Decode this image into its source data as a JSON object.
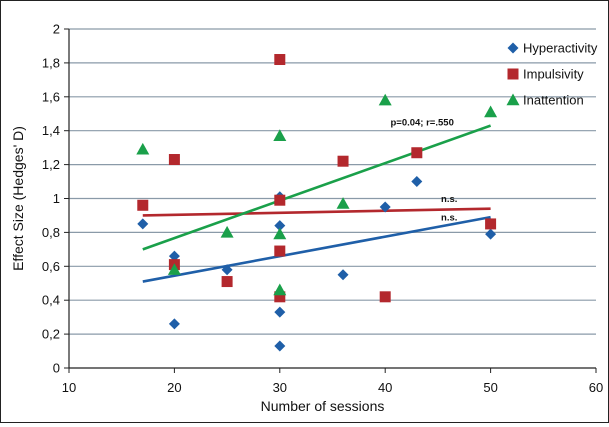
{
  "chart_data": {
    "type": "scatter",
    "xlabel": "Number of sessions",
    "ylabel": "Effect Size (Hedges' D)",
    "xlim": [
      10,
      60
    ],
    "ylim": [
      0,
      2
    ],
    "xticks": [
      10,
      20,
      30,
      40,
      50,
      60
    ],
    "yticks": [
      0,
      0.2,
      0.4,
      0.6,
      0.8,
      1,
      1.2,
      1.4,
      1.6,
      1.8,
      2
    ],
    "ytick_labels": [
      "0",
      "0,2",
      "0,4",
      "0,6",
      "0,8",
      "1",
      "1,2",
      "1,4",
      "1,6",
      "1,8",
      "2"
    ],
    "grid": "horizontal",
    "legend_position": "top-right",
    "series": [
      {
        "name": "Hyperactivity",
        "marker": "diamond",
        "color": "#1f5fa8",
        "points": [
          [
            17,
            0.85
          ],
          [
            20,
            0.66
          ],
          [
            20,
            0.26
          ],
          [
            25,
            0.58
          ],
          [
            30,
            1.01
          ],
          [
            30,
            0.84
          ],
          [
            30,
            0.33
          ],
          [
            30,
            0.13
          ],
          [
            36,
            0.55
          ],
          [
            40,
            0.95
          ],
          [
            43,
            1.1
          ],
          [
            50,
            0.79
          ]
        ],
        "trend": {
          "x": [
            17,
            50
          ],
          "y": [
            0.51,
            0.89
          ]
        }
      },
      {
        "name": "Impulsivity",
        "marker": "square",
        "color": "#b3282d",
        "points": [
          [
            17,
            0.96
          ],
          [
            20,
            1.23
          ],
          [
            20,
            0.61
          ],
          [
            25,
            0.51
          ],
          [
            30,
            1.82
          ],
          [
            30,
            0.99
          ],
          [
            30,
            0.69
          ],
          [
            30,
            0.42
          ],
          [
            36,
            1.22
          ],
          [
            40,
            0.42
          ],
          [
            43,
            1.27
          ],
          [
            50,
            0.85
          ]
        ],
        "trend": {
          "x": [
            17,
            50
          ],
          "y": [
            0.9,
            0.94
          ]
        }
      },
      {
        "name": "Inattention",
        "marker": "triangle",
        "color": "#1aa04a",
        "points": [
          [
            17,
            1.29
          ],
          [
            20,
            0.58
          ],
          [
            25,
            0.8
          ],
          [
            30,
            1.37
          ],
          [
            30,
            0.79
          ],
          [
            30,
            0.46
          ],
          [
            36,
            0.97
          ],
          [
            40,
            1.58
          ],
          [
            50,
            1.51
          ]
        ],
        "trend": {
          "x": [
            17,
            50
          ],
          "y": [
            0.7,
            1.43
          ]
        }
      }
    ],
    "annotations": [
      {
        "text": "p=0.04; r=.550",
        "x": 40.5,
        "y": 1.43
      },
      {
        "text": "n.s.",
        "x": 45.3,
        "y": 0.98
      },
      {
        "text": "n.s.",
        "x": 45.3,
        "y": 0.87
      }
    ]
  }
}
